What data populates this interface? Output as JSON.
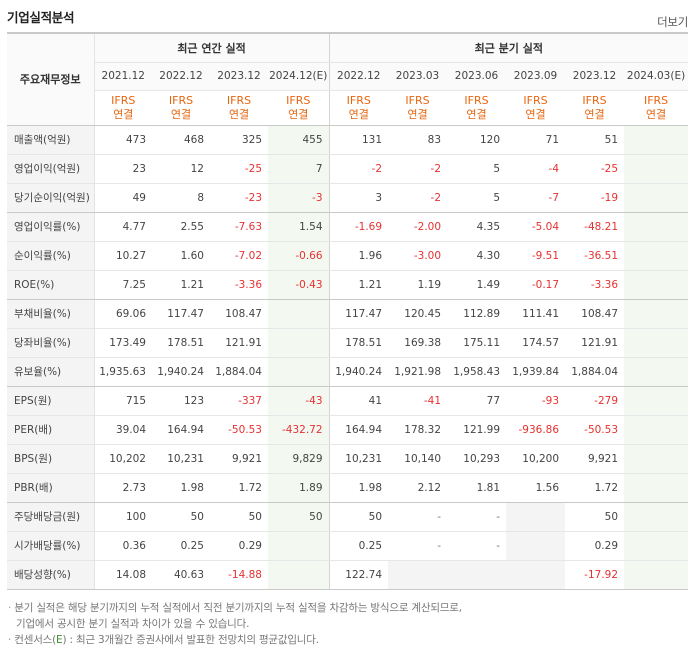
{
  "header": {
    "title": "기업실적분석",
    "more": "더보기"
  },
  "table": {
    "label_head": "주요재무정보",
    "group_annual": "최근 연간 실적",
    "group_quarter": "최근 분기 실적",
    "annual_periods": [
      "2021.12",
      "2022.12",
      "2023.12",
      "2024.12(E)"
    ],
    "quarter_periods": [
      "2022.12",
      "2023.03",
      "2023.06",
      "2023.09",
      "2023.12",
      "2024.03(E)"
    ],
    "basis_line1": "IFRS",
    "basis_line2": "연결",
    "rows": [
      {
        "label": "매출액(억원)",
        "values": [
          "473",
          "468",
          "325",
          "455",
          "131",
          "83",
          "120",
          "71",
          "51",
          ""
        ]
      },
      {
        "label": "영업이익(억원)",
        "values": [
          "23",
          "12",
          "-25",
          "7",
          "-2",
          "-2",
          "5",
          "-4",
          "-25",
          ""
        ]
      },
      {
        "label": "당기순이익(억원)",
        "values": [
          "49",
          "8",
          "-23",
          "-3",
          "3",
          "-2",
          "5",
          "-7",
          "-19",
          ""
        ]
      },
      {
        "label": "영업이익률(%)",
        "values": [
          "4.77",
          "2.55",
          "-7.63",
          "1.54",
          "-1.69",
          "-2.00",
          "4.35",
          "-5.04",
          "-48.21",
          ""
        ]
      },
      {
        "label": "순이익률(%)",
        "values": [
          "10.27",
          "1.60",
          "-7.02",
          "-0.66",
          "1.96",
          "-3.00",
          "4.30",
          "-9.51",
          "-36.51",
          ""
        ]
      },
      {
        "label": "ROE(%)",
        "values": [
          "7.25",
          "1.21",
          "-3.36",
          "-0.43",
          "1.21",
          "1.19",
          "1.49",
          "-0.17",
          "-3.36",
          ""
        ]
      },
      {
        "label": "부채비율(%)",
        "values": [
          "69.06",
          "117.47",
          "108.47",
          "",
          "117.47",
          "120.45",
          "112.89",
          "111.41",
          "108.47",
          ""
        ]
      },
      {
        "label": "당좌비율(%)",
        "values": [
          "173.49",
          "178.51",
          "121.91",
          "",
          "178.51",
          "169.38",
          "175.11",
          "174.57",
          "121.91",
          ""
        ]
      },
      {
        "label": "유보율(%)",
        "values": [
          "1,935.63",
          "1,940.24",
          "1,884.04",
          "",
          "1,940.24",
          "1,921.98",
          "1,958.43",
          "1,939.84",
          "1,884.04",
          ""
        ]
      },
      {
        "label": "EPS(원)",
        "values": [
          "715",
          "123",
          "-337",
          "-43",
          "41",
          "-41",
          "77",
          "-93",
          "-279",
          ""
        ]
      },
      {
        "label": "PER(배)",
        "values": [
          "39.04",
          "164.94",
          "-50.53",
          "-432.72",
          "164.94",
          "178.32",
          "121.99",
          "-936.86",
          "-50.53",
          ""
        ]
      },
      {
        "label": "BPS(원)",
        "values": [
          "10,202",
          "10,231",
          "9,921",
          "9,829",
          "10,231",
          "10,140",
          "10,293",
          "10,200",
          "9,921",
          ""
        ]
      },
      {
        "label": "PBR(배)",
        "values": [
          "2.73",
          "1.98",
          "1.72",
          "1.89",
          "1.98",
          "2.12",
          "1.81",
          "1.56",
          "1.72",
          ""
        ]
      },
      {
        "label": "주당배당금(원)",
        "values": [
          "100",
          "50",
          "50",
          "50",
          "50",
          "-",
          "-",
          "",
          "50",
          ""
        ]
      },
      {
        "label": "시가배당률(%)",
        "values": [
          "0.36",
          "0.25",
          "0.29",
          "",
          "0.25",
          "-",
          "-",
          "",
          "0.29",
          ""
        ]
      },
      {
        "label": "배당성향(%)",
        "values": [
          "14.08",
          "40.63",
          "-14.88",
          "",
          "122.74",
          "",
          "",
          "",
          "-17.92",
          ""
        ]
      }
    ]
  },
  "notes": {
    "bullet": "·",
    "line1": "분기 실적은 해당 분기까지의 누적 실적에서 직전 분기까지의 누적 실적을 차감하는 방식으로 계산되므로,",
    "line2": "기업에서 공시한 분기 실적과 차이가 있을 수 있습니다.",
    "line3_prefix": "컨센서스(",
    "line3_mark": "E",
    "line3_suffix": ") : 최근 3개월간 증권사에서 발표한 전망치의 평균값입니다."
  }
}
